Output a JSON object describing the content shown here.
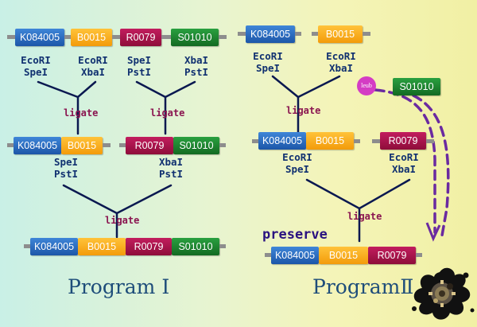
{
  "program1": {
    "title": "Program Ⅰ",
    "parts": {
      "k084005": "K084005",
      "b0015": "B0015",
      "r0079": "R0079",
      "s01010": "S01010"
    },
    "cut_labels": {
      "k084005_top": [
        "EcoRI",
        "SpeI"
      ],
      "b0015_top": [
        "EcoRI",
        "XbaI"
      ],
      "r0079_top": [
        "SpeI",
        "PstI"
      ],
      "s01010_top": [
        "XbaI",
        "PstI"
      ],
      "left_mid": [
        "SpeI",
        "PstI"
      ],
      "right_mid": [
        "XbaI",
        "PstI"
      ]
    },
    "ligate": "ligate"
  },
  "program2": {
    "title": "ProgramⅡ",
    "parts": {
      "k084005": "K084005",
      "b0015": "B0015",
      "r0079": "R0079",
      "s01010": "S01010"
    },
    "cut_labels": {
      "k084005_top": [
        "EcoRI",
        "SpeI"
      ],
      "b0015_top": [
        "EcoRI",
        "XbaI"
      ],
      "left_mid": [
        "EcoRI",
        "SpeI"
      ],
      "right_mid": [
        "EcoRI",
        "XbaI"
      ]
    },
    "ligate": "ligate",
    "leub": "leub",
    "preserve": "preserve"
  },
  "colors": {
    "k084005": "#1f5fb0",
    "b0015": "#f6a821",
    "r0079": "#a8124a",
    "s01010": "#1c7e2c",
    "line": "#0a1850",
    "dashed_arrow": "#6a2aa0"
  },
  "icons": {
    "logo": "splatter-gear-icon"
  }
}
